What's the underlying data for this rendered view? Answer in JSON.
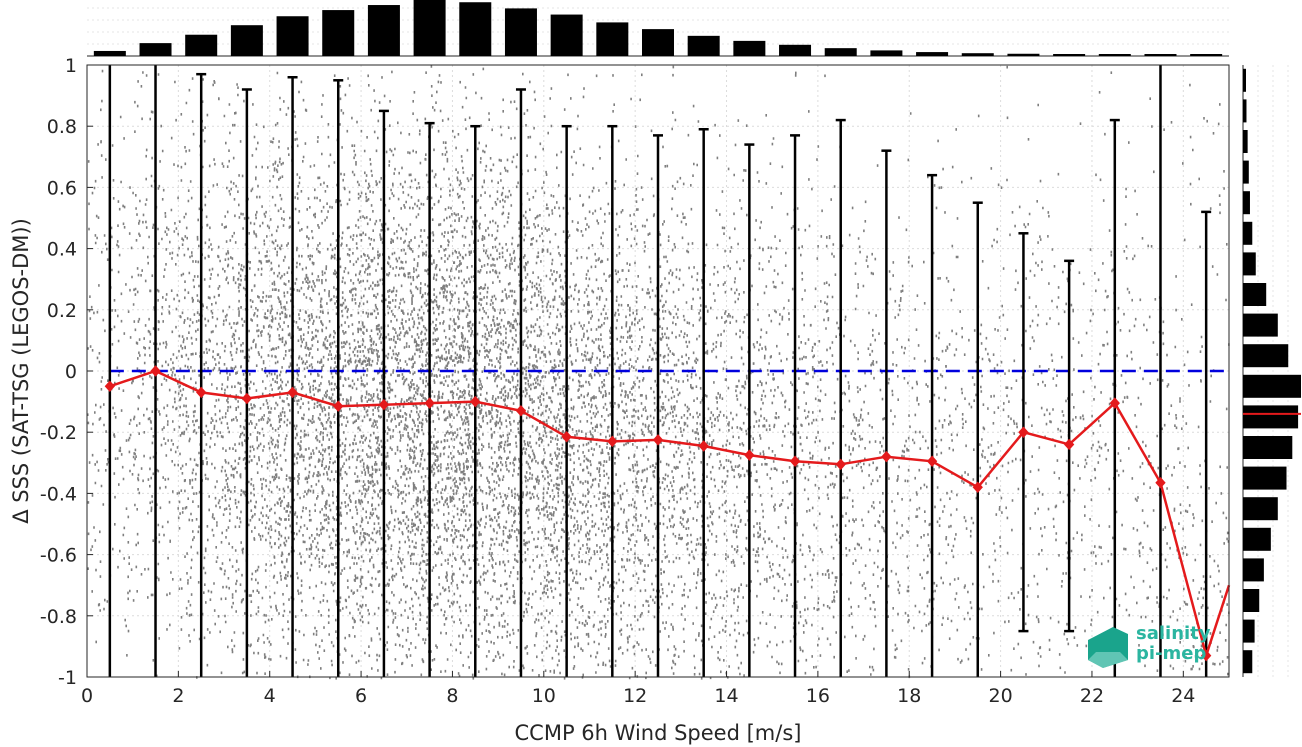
{
  "chart_data": {
    "type": "scatter",
    "xlabel": "CCMP 6h Wind Speed [m/s]",
    "ylabel": "Δ SSS (SAT-TSG (LEGOS-DM))",
    "xlim": [
      0,
      25
    ],
    "ylim": [
      -1,
      1
    ],
    "x_ticks": [
      "0",
      "2",
      "4",
      "6",
      "8",
      "10",
      "12",
      "14",
      "16",
      "18",
      "20",
      "22",
      "24"
    ],
    "y_ticks": [
      "-1",
      "-0.8",
      "-0.6",
      "-0.4",
      "-0.2",
      "0",
      "0.2",
      "0.4",
      "0.6",
      "0.8",
      "1"
    ],
    "grid": true,
    "colors": {
      "scatter": "#7f7f7f",
      "median_line": "#e41a1c",
      "zero_line": "#0000dd",
      "error_bars": "#000000",
      "histogram": "#000000"
    },
    "series": [
      {
        "type": "line",
        "x": [
          0.5,
          1.5,
          2.5,
          3.5,
          4.5,
          5.5,
          6.5,
          7.5,
          8.5,
          9.5,
          10.5,
          11.5,
          12.5,
          13.5,
          14.5,
          15.5,
          16.5,
          17.5,
          18.5,
          19.5,
          20.5,
          21.5,
          22.5,
          23.5,
          24.5
        ],
        "y": [
          -0.05,
          0.0,
          -0.07,
          -0.09,
          -0.07,
          -0.115,
          -0.11,
          -0.105,
          -0.1,
          -0.13,
          -0.215,
          -0.23,
          -0.225,
          -0.245,
          -0.275,
          -0.295,
          -0.305,
          -0.28,
          -0.295,
          -0.38,
          -0.2,
          -0.24,
          -0.105,
          -0.365,
          -0.93
        ]
      }
    ],
    "error_bars": {
      "x": [
        0.5,
        1.5,
        2.5,
        3.5,
        4.5,
        5.5,
        6.5,
        7.5,
        8.5,
        9.5,
        10.5,
        11.5,
        12.5,
        13.5,
        14.5,
        15.5,
        16.5,
        17.5,
        18.5,
        19.5,
        20.5,
        21.5,
        22.5,
        23.5,
        24.5
      ],
      "upper": [
        1.0,
        1.0,
        0.97,
        0.92,
        0.96,
        0.95,
        0.85,
        0.81,
        0.8,
        0.92,
        0.8,
        0.8,
        0.77,
        0.79,
        0.74,
        0.77,
        0.82,
        0.72,
        0.64,
        0.55,
        0.45,
        0.36,
        0.82,
        1.0,
        0.52
      ],
      "lower": [
        -1.0,
        -1.0,
        -1.0,
        -1.0,
        -1.0,
        -1.0,
        -1.0,
        -1.0,
        -1.0,
        -1.0,
        -1.0,
        -1.0,
        -1.0,
        -1.0,
        -1.0,
        -1.0,
        -1.0,
        -1.0,
        -1.0,
        -1.0,
        -0.85,
        -0.85,
        -1.0,
        -1.0,
        -1.0
      ]
    },
    "zero_line_y": 0,
    "top_histogram": {
      "bin_centers": [
        0.5,
        1.5,
        2.5,
        3.5,
        4.5,
        5.5,
        6.5,
        7.5,
        8.5,
        9.5,
        10.5,
        11.5,
        12.5,
        13.5,
        14.5,
        15.5,
        16.5,
        17.5,
        18.5,
        19.5,
        20.5,
        21.5,
        22.5,
        23.5,
        24.5
      ],
      "relative_counts": [
        0.09,
        0.23,
        0.38,
        0.55,
        0.71,
        0.82,
        0.91,
        1.0,
        0.96,
        0.85,
        0.74,
        0.6,
        0.48,
        0.36,
        0.27,
        0.2,
        0.14,
        0.1,
        0.07,
        0.05,
        0.04,
        0.03,
        0.02,
        0.015,
        0.01
      ]
    },
    "right_histogram": {
      "bin_centers": [
        0.95,
        0.85,
        0.75,
        0.65,
        0.55,
        0.45,
        0.35,
        0.25,
        0.15,
        0.05,
        -0.05,
        -0.15,
        -0.25,
        -0.35,
        -0.45,
        -0.55,
        -0.65,
        -0.75,
        -0.85,
        -0.95
      ],
      "relative_counts": [
        0.04,
        0.06,
        0.08,
        0.1,
        0.12,
        0.16,
        0.22,
        0.4,
        0.6,
        0.78,
        1.0,
        0.95,
        0.85,
        0.75,
        0.6,
        0.48,
        0.36,
        0.28,
        0.2,
        0.16
      ],
      "median_marker_y": -0.14
    }
  },
  "logo": {
    "line1": "salinity",
    "line2": "pi-mep"
  }
}
